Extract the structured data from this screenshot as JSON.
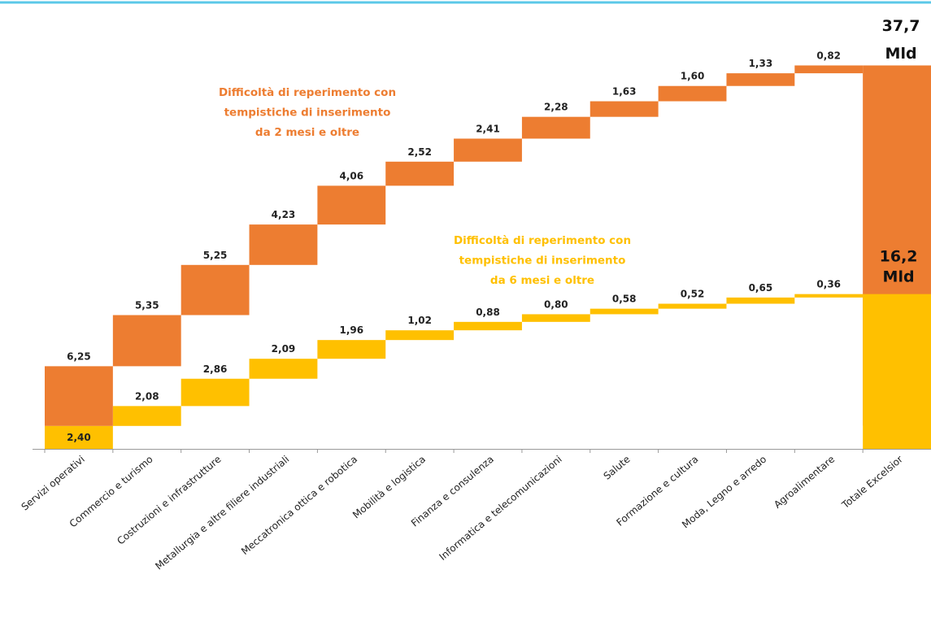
{
  "chart_data": {
    "type": "waterfall",
    "categories": [
      "Servizi operativi",
      "Commercio e turismo",
      "Costruzioni e infrastrutture",
      "Metallurgia e altre filiere industriali",
      "Meccatronica ottica e robotica",
      "Mobilità e logistica",
      "Finanza e consulenza",
      "Informatica e telecomunicazioni",
      "Salute",
      "Formazione e cultura",
      "Moda, Legno e arredo",
      "Agroalimentare",
      "Totale Excelsior"
    ],
    "series": [
      {
        "name": "Difficoltà di reperimento con tempistiche di inserimento da 6 mesi e oltre",
        "color": "#FFC000",
        "values": [
          2.4,
          2.08,
          2.86,
          2.09,
          1.96,
          1.02,
          0.88,
          0.8,
          0.58,
          0.52,
          0.65,
          0.36,
          16.2
        ],
        "value_labels": [
          "2,40",
          "2,08",
          "2,86",
          "2,09",
          "1,96",
          "1,02",
          "0,88",
          "0,80",
          "0,58",
          "0,52",
          "0,65",
          "0,36",
          "16,2"
        ],
        "total_unit": "Mld",
        "annotation": [
          "Difficoltà di reperimento con",
          "tempistiche di inserimento",
          "da 6 mesi e oltre"
        ]
      },
      {
        "name": "Difficoltà di reperimento con tempistiche di inserimento da 2 mesi e oltre",
        "color": "#ED7D31",
        "values": [
          6.25,
          5.35,
          5.25,
          4.23,
          4.06,
          2.52,
          2.41,
          2.28,
          1.63,
          1.6,
          1.33,
          0.82,
          37.7
        ],
        "value_labels": [
          "6,25",
          "5,35",
          "5,25",
          "4,23",
          "4,06",
          "2,52",
          "2,41",
          "2,28",
          "1,63",
          "1,60",
          "1,33",
          "0,82",
          "37,7"
        ],
        "total_unit": "Mld",
        "annotation": [
          "Difficoltà di reperimento con",
          "tempistiche di inserimento",
          "da 2 mesi e oltre"
        ]
      }
    ]
  }
}
